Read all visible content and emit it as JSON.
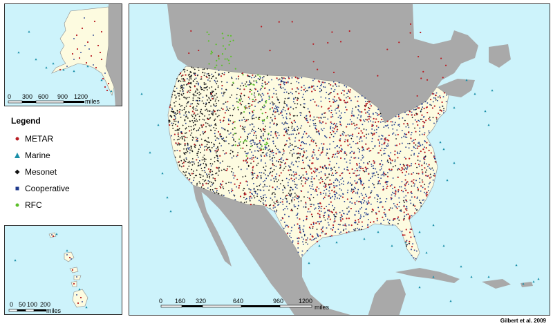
{
  "legend": {
    "title": "Legend",
    "items": [
      {
        "label": "METAR",
        "color": "#b81c22",
        "symbol": "circle"
      },
      {
        "label": "Marine",
        "color": "#1a8fa8",
        "symbol": "triangle"
      },
      {
        "label": "Mesonet",
        "color": "#111111",
        "symbol": "diamond"
      },
      {
        "label": "Cooperative",
        "color": "#1f3a8c",
        "symbol": "square"
      },
      {
        "label": "RFC",
        "color": "#5cbf2a",
        "symbol": "circle"
      }
    ]
  },
  "scalebars": {
    "alaska": {
      "ticks": [
        "0",
        "300",
        "600",
        "900",
        "1200"
      ],
      "unit": "miles"
    },
    "hawaii": {
      "ticks": [
        "0",
        "50",
        "100",
        "200"
      ],
      "unit": "miles"
    },
    "conus": {
      "ticks": [
        "0",
        "160",
        "320",
        "640",
        "960",
        "1200"
      ],
      "unit": "miles"
    }
  },
  "credit": "Gilbert et al. 2009",
  "colors": {
    "water": "#cdf3fb",
    "land_outside": "#a9a9a9",
    "land_us": "#fdfbe0",
    "border": "#777777"
  }
}
